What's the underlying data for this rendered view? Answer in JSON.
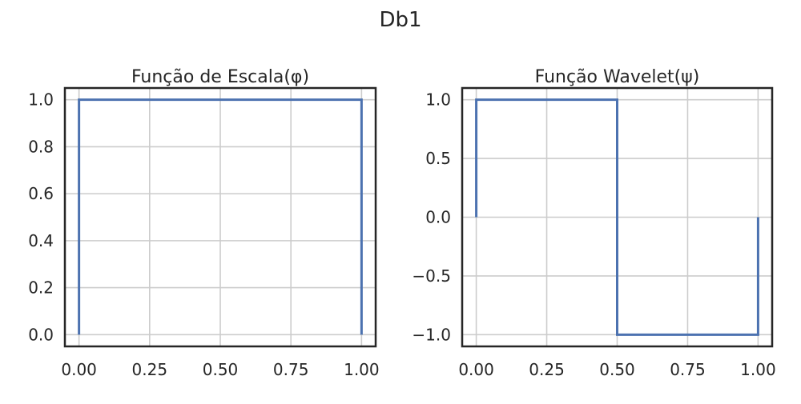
{
  "figure": {
    "title": "Db1"
  },
  "chart_data": [
    {
      "type": "line",
      "title": "Função de Escala(φ)",
      "xlabel": "",
      "ylabel": "",
      "xlim": [
        -0.05,
        1.05
      ],
      "ylim": [
        -0.05,
        1.05
      ],
      "grid": true,
      "xticks": [
        0.0,
        0.25,
        0.5,
        0.75,
        1.0
      ],
      "xtick_labels": [
        "0.00",
        "0.25",
        "0.50",
        "0.75",
        "1.00"
      ],
      "yticks": [
        0.0,
        0.2,
        0.4,
        0.6,
        0.8,
        1.0
      ],
      "ytick_labels": [
        "0.0",
        "0.2",
        "0.4",
        "0.6",
        "0.8",
        "1.0"
      ],
      "series": [
        {
          "color": "#4c72b0",
          "x": [
            0,
            0,
            1,
            1
          ],
          "y": [
            0,
            1,
            1,
            0
          ]
        }
      ]
    },
    {
      "type": "line",
      "title": "Função Wavelet(ψ)",
      "xlabel": "",
      "ylabel": "",
      "xlim": [
        -0.05,
        1.05
      ],
      "ylim": [
        -1.1,
        1.1
      ],
      "grid": true,
      "xticks": [
        0.0,
        0.25,
        0.5,
        0.75,
        1.0
      ],
      "xtick_labels": [
        "0.00",
        "0.25",
        "0.50",
        "0.75",
        "1.00"
      ],
      "yticks": [
        -1.0,
        -0.5,
        0.0,
        0.5,
        1.0
      ],
      "ytick_labels": [
        "−1.0",
        "−0.5",
        "0.0",
        "0.5",
        "1.0"
      ],
      "series": [
        {
          "color": "#4c72b0",
          "x": [
            0,
            0,
            0.5,
            0.5,
            1,
            1
          ],
          "y": [
            0,
            1,
            1,
            -1,
            -1,
            0
          ]
        }
      ]
    }
  ]
}
